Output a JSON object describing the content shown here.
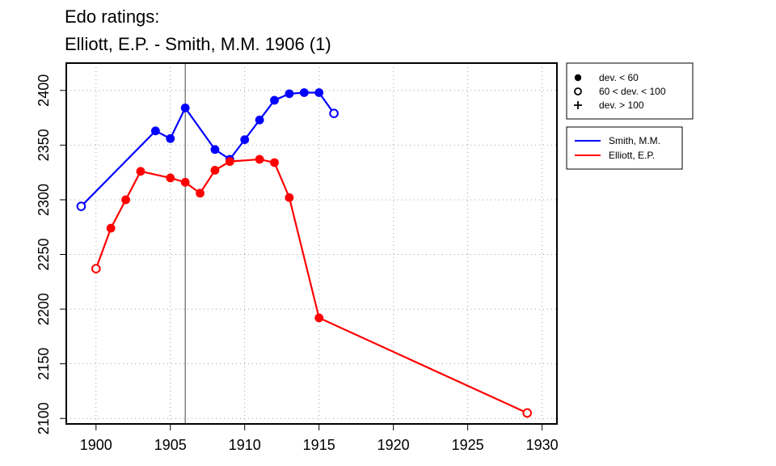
{
  "chart_data": {
    "type": "line",
    "title_line1": "Edo ratings:",
    "title_line2": "Elliott, E.P. - Smith, M.M. 1906 (1)",
    "xlabel": "",
    "ylabel": "",
    "xlim": [
      1898,
      1931
    ],
    "ylim": [
      2095,
      2425
    ],
    "x_ticks": [
      1900,
      1905,
      1910,
      1915,
      1920,
      1925,
      1930
    ],
    "y_ticks": [
      2100,
      2150,
      2200,
      2250,
      2300,
      2350,
      2400
    ],
    "grid": true,
    "reference_line_x": 1906,
    "legend_markers": [
      {
        "symbol": "filled-circle",
        "label": "dev. < 60"
      },
      {
        "symbol": "open-circle",
        "label": "60 < dev. < 100"
      },
      {
        "symbol": "plus",
        "label": "dev. > 100"
      }
    ],
    "series": [
      {
        "name": "Smith, M.M.",
        "color": "#0000ff",
        "points": [
          {
            "x": 1899,
            "y": 2294,
            "marker": "open"
          },
          {
            "x": 1904,
            "y": 2363,
            "marker": "filled"
          },
          {
            "x": 1905,
            "y": 2356,
            "marker": "filled"
          },
          {
            "x": 1906,
            "y": 2384,
            "marker": "filled"
          },
          {
            "x": 1908,
            "y": 2346,
            "marker": "filled"
          },
          {
            "x": 1909,
            "y": 2337,
            "marker": "filled"
          },
          {
            "x": 1910,
            "y": 2355,
            "marker": "filled"
          },
          {
            "x": 1911,
            "y": 2373,
            "marker": "filled"
          },
          {
            "x": 1912,
            "y": 2391,
            "marker": "filled"
          },
          {
            "x": 1913,
            "y": 2397,
            "marker": "filled"
          },
          {
            "x": 1914,
            "y": 2398,
            "marker": "filled"
          },
          {
            "x": 1915,
            "y": 2398,
            "marker": "filled"
          },
          {
            "x": 1916,
            "y": 2379,
            "marker": "open"
          }
        ]
      },
      {
        "name": "Elliott, E.P.",
        "color": "#ff0000",
        "points": [
          {
            "x": 1900,
            "y": 2237,
            "marker": "open"
          },
          {
            "x": 1901,
            "y": 2274,
            "marker": "filled"
          },
          {
            "x": 1902,
            "y": 2300,
            "marker": "filled"
          },
          {
            "x": 1903,
            "y": 2326,
            "marker": "filled"
          },
          {
            "x": 1905,
            "y": 2320,
            "marker": "filled"
          },
          {
            "x": 1906,
            "y": 2316,
            "marker": "filled"
          },
          {
            "x": 1907,
            "y": 2306,
            "marker": "filled"
          },
          {
            "x": 1908,
            "y": 2327,
            "marker": "filled"
          },
          {
            "x": 1909,
            "y": 2335,
            "marker": "filled"
          },
          {
            "x": 1911,
            "y": 2337,
            "marker": "filled"
          },
          {
            "x": 1912,
            "y": 2334,
            "marker": "filled"
          },
          {
            "x": 1913,
            "y": 2302,
            "marker": "filled"
          },
          {
            "x": 1915,
            "y": 2192,
            "marker": "filled"
          },
          {
            "x": 1929,
            "y": 2105,
            "marker": "open"
          }
        ]
      }
    ]
  }
}
